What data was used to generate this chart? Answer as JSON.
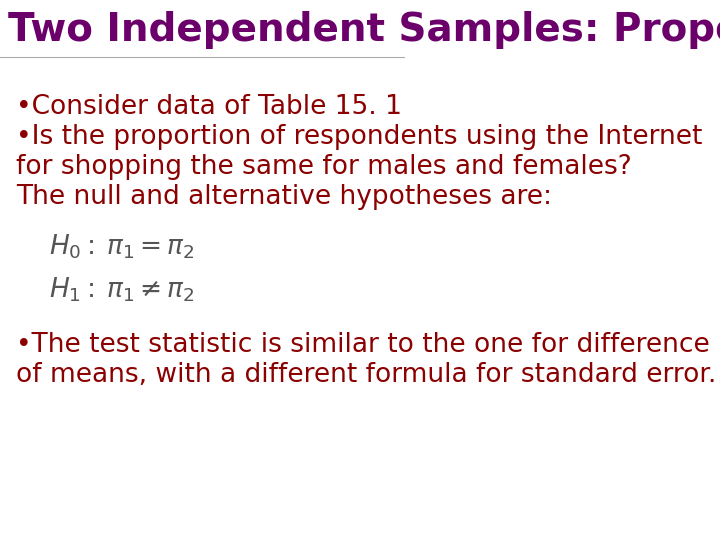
{
  "title": "Two Independent Samples: Proportions",
  "title_color": "#6B006B",
  "title_fontsize": 28,
  "title_bold": true,
  "background_color": "#FFFFFF",
  "body_color": "#8B0000",
  "body_fontsize": 19,
  "math_color": "#555555",
  "math_fontsize": 17,
  "bullet1": "Consider data of Table 15. 1",
  "bullet2_line1": "Is the proportion of respondents using the Internet",
  "bullet2_line2": "for shopping the same for males and females?",
  "bullet2_line3": "The null and alternative hypotheses are:",
  "bullet3_line1": "The test statistic is similar to the one for difference",
  "bullet3_line2": "of means, with a different formula for standard error.",
  "eq1": "$H_0:\\: \\pi_1 = \\pi_2$",
  "eq2": "$H_1:\\: \\pi_1 \\neq \\pi_2$"
}
